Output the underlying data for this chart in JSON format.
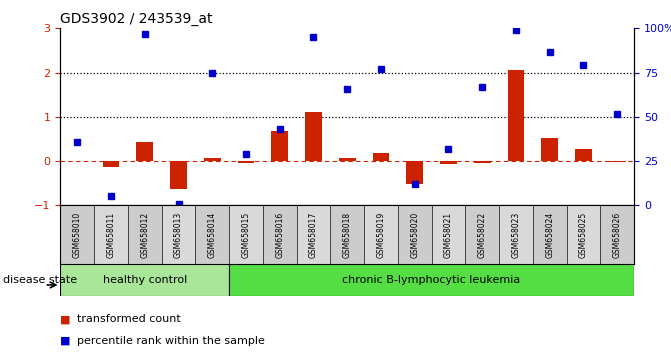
{
  "title": "GDS3902 / 243539_at",
  "samples": [
    "GSM658010",
    "GSM658011",
    "GSM658012",
    "GSM658013",
    "GSM658014",
    "GSM658015",
    "GSM658016",
    "GSM658017",
    "GSM658018",
    "GSM658019",
    "GSM658020",
    "GSM658021",
    "GSM658022",
    "GSM658023",
    "GSM658024",
    "GSM658025",
    "GSM658026"
  ],
  "transformed_count": [
    0.0,
    -0.13,
    0.42,
    -0.62,
    0.07,
    -0.05,
    0.68,
    1.1,
    0.07,
    0.18,
    -0.52,
    -0.06,
    -0.04,
    2.05,
    0.52,
    0.28,
    -0.02
  ],
  "percentile_rank": [
    0.42,
    -0.78,
    2.88,
    -0.98,
    1.99,
    0.17,
    0.72,
    2.81,
    1.64,
    2.07,
    -0.52,
    0.28,
    1.68,
    2.97,
    2.47,
    2.18,
    1.07
  ],
  "bar_color": "#cc2200",
  "dot_color": "#0000cc",
  "zero_line_color": "#cc2200",
  "dotted_line_color": "#000000",
  "healthy_count": 5,
  "healthy_color": "#aae699",
  "leukemia_color": "#55dd44",
  "healthy_label": "healthy control",
  "leukemia_label": "chronic B-lymphocytic leukemia",
  "disease_state_label": "disease state",
  "legend_bar": "transformed count",
  "legend_dot": "percentile rank within the sample",
  "ylim_left": [
    -1.0,
    3.0
  ],
  "ylim_right": [
    0,
    100
  ],
  "yticks_left": [
    -1,
    0,
    1,
    2,
    3
  ],
  "yticks_right": [
    0,
    25,
    50,
    75,
    100
  ],
  "ytick_labels_right": [
    "0",
    "25",
    "50",
    "75",
    "100%"
  ],
  "bg_color": "#ffffff"
}
